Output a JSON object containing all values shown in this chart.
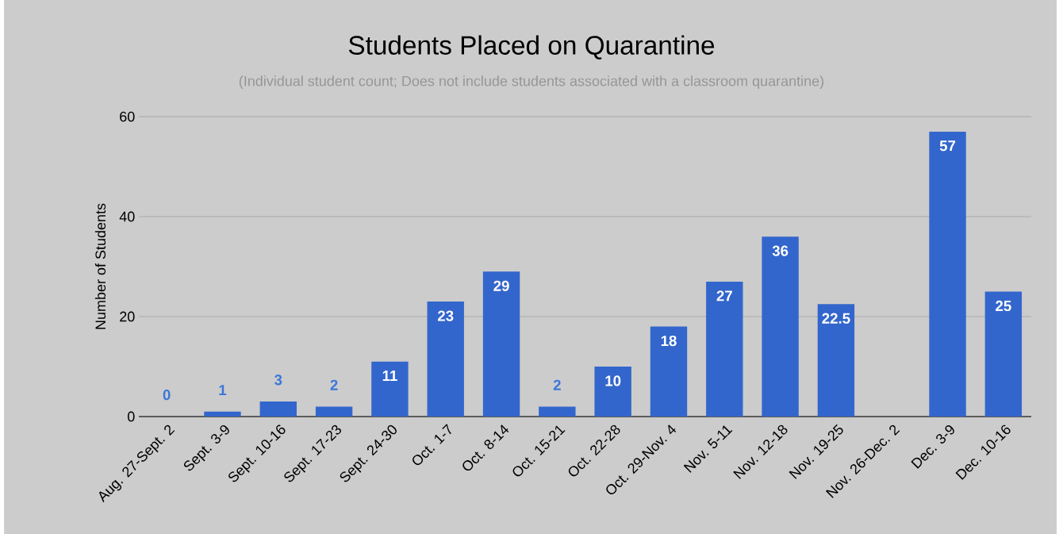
{
  "chart_data": {
    "type": "bar",
    "title": "Students Placed on Quarantine",
    "subtitle": "(Individual student count; Does not include students associated with a classroom quarantine)",
    "ylabel": "Number of Students",
    "categories": [
      "Aug. 27-Sept. 2",
      "Sept. 3-9",
      "Sept. 10-16",
      "Sept. 17-23",
      "Sept. 24-30",
      "Oct. 1-7",
      "Oct. 8-14",
      "Oct. 15-21",
      "Oct. 22-28",
      "Oct. 29-Nov. 4",
      "Nov. 5-11",
      "Nov. 12-18",
      "Nov. 19-25",
      "Nov. 26-Dec. 2",
      "Dec. 3-9",
      "Dec. 10-16"
    ],
    "values": [
      0,
      1,
      3,
      2,
      11,
      23,
      29,
      2,
      10,
      18,
      27,
      36,
      22.5,
      null,
      57,
      25
    ],
    "color": "#3366cc",
    "ylim": [
      0,
      60
    ],
    "yticks": [
      0,
      20,
      40,
      60
    ],
    "grid": "y",
    "data_labels": true
  }
}
